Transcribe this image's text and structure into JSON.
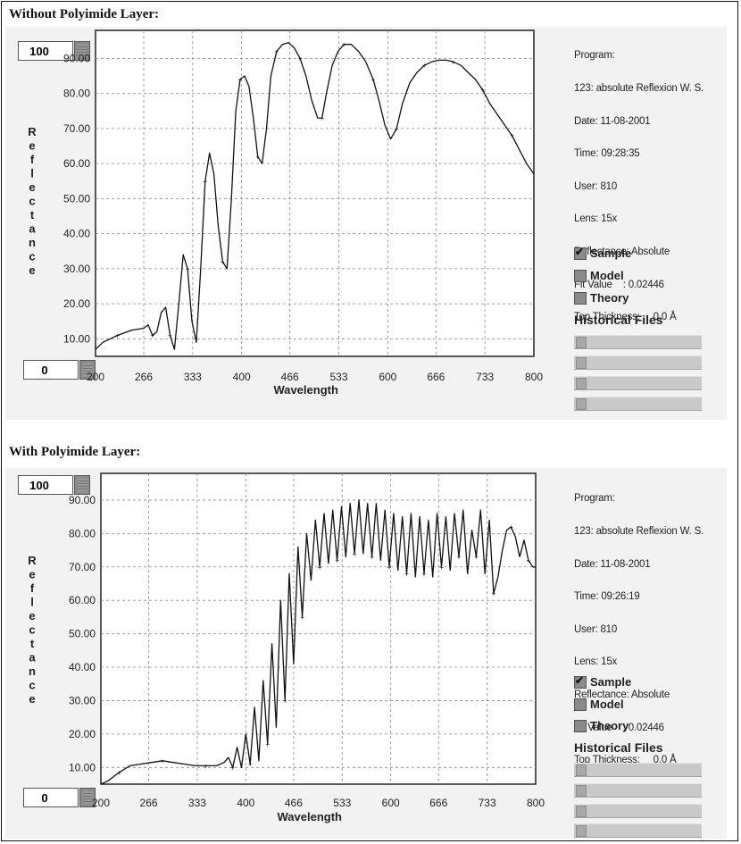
{
  "panels": [
    {
      "section_title": "Without Polyimide Layer:",
      "spin_max": "100",
      "spin_min": "0",
      "info_lines": [
        "Program:",
        "123: absolute Reflexion W. S.",
        "Date: 11-08-2001",
        "Time: 09:28:35",
        "User: 810",
        "Lens: 15x",
        "Reflectance: Absolute",
        "Fit Value    : 0.02446",
        "Top Thickness:     0.0 Å"
      ],
      "legend": [
        {
          "label": "Sample",
          "checked": true
        },
        {
          "label": "Model",
          "checked": false
        },
        {
          "label": "Theory",
          "checked": false
        }
      ],
      "historical_files_label": "Historical Files"
    },
    {
      "section_title": "With Polyimide Layer:",
      "spin_max": "100",
      "spin_min": "0",
      "info_lines": [
        "Program:",
        "123: absolute Reflexion W. S.",
        "Date: 11-08-2001",
        "Time: 09:26:19",
        "User: 810",
        "Lens: 15x",
        "Reflectance: Absolute",
        "Fit Value    : 0.02446",
        "Top Thickness:     0.0 Å"
      ],
      "legend": [
        {
          "label": "Sample",
          "checked": true
        },
        {
          "label": "Model",
          "checked": false
        },
        {
          "label": "Theory",
          "checked": false
        }
      ],
      "historical_files_label": "Historical Files"
    }
  ],
  "chart_data": [
    {
      "type": "line",
      "title": "Without Polyimide Layer:",
      "xlabel": "Wavelength",
      "ylabel": "Reflectance",
      "xlim": [
        200,
        800
      ],
      "ylim": [
        5,
        98
      ],
      "xticks": [
        200,
        266,
        333,
        400,
        466,
        533,
        600,
        666,
        733,
        800
      ],
      "xtick_labels": [
        "200",
        "266",
        "333",
        "400",
        "466",
        "533",
        "600",
        "666",
        "733",
        "800"
      ],
      "yticks": [
        10,
        20,
        30,
        40,
        50,
        60,
        70,
        80,
        90
      ],
      "ytick_labels": [
        "10.00",
        "20.00",
        "30.00",
        "40.00",
        "50.00",
        "60.00",
        "70.00",
        "80.00",
        "90.00"
      ],
      "grid": true,
      "series": [
        {
          "name": "Sample",
          "x": [
            200,
            210,
            230,
            250,
            266,
            272,
            278,
            284,
            290,
            296,
            302,
            308,
            314,
            320,
            326,
            332,
            338,
            344,
            350,
            356,
            362,
            368,
            374,
            380,
            386,
            392,
            398,
            404,
            410,
            416,
            422,
            428,
            434,
            440,
            448,
            456,
            464,
            472,
            480,
            488,
            496,
            504,
            510,
            516,
            524,
            532,
            540,
            550,
            560,
            570,
            580,
            588,
            596,
            604,
            612,
            620,
            630,
            640,
            650,
            660,
            670,
            680,
            690,
            700,
            710,
            720,
            730,
            740,
            750,
            760,
            770,
            780,
            790,
            800
          ],
          "y": [
            7,
            9,
            11,
            12.5,
            13,
            14,
            11,
            12,
            17.5,
            19,
            11,
            7,
            20,
            34,
            30,
            15,
            9,
            30,
            55,
            63,
            57,
            42,
            32,
            30,
            50,
            75,
            84,
            85,
            82,
            73,
            62,
            60,
            70,
            85,
            92,
            94,
            94.5,
            93,
            90,
            85,
            78,
            73,
            73,
            80,
            88,
            92,
            94,
            94,
            92,
            89,
            84,
            78,
            71,
            67,
            70,
            77,
            83,
            86,
            88,
            89,
            89.5,
            89.5,
            89,
            88,
            86,
            84,
            81,
            77,
            74,
            71,
            68,
            64,
            60,
            57
          ]
        }
      ]
    },
    {
      "type": "line",
      "title": "With Polyimide Layer:",
      "xlabel": "Wavelength",
      "ylabel": "Reflectance",
      "xlim": [
        200,
        800
      ],
      "ylim": [
        5,
        98
      ],
      "xticks": [
        200,
        266,
        333,
        400,
        466,
        533,
        600,
        666,
        733,
        800
      ],
      "xtick_labels": [
        "200",
        "266",
        "333",
        "400",
        "466",
        "533",
        "600",
        "666",
        "733",
        "800"
      ],
      "yticks": [
        10,
        20,
        30,
        40,
        50,
        60,
        70,
        80,
        90
      ],
      "ytick_labels": [
        "10.00",
        "20.00",
        "30.00",
        "40.00",
        "50.00",
        "60.00",
        "70.00",
        "80.00",
        "90.00"
      ],
      "grid": true,
      "series": [
        {
          "name": "Sample",
          "x": [
            200,
            210,
            225,
            240,
            255,
            270,
            285,
            300,
            315,
            330,
            345,
            360,
            370,
            376,
            382,
            388,
            394,
            400,
            406,
            412,
            418,
            424,
            430,
            436,
            442,
            448,
            454,
            460,
            466,
            472,
            478,
            484,
            490,
            496,
            502,
            508,
            514,
            520,
            526,
            532,
            538,
            544,
            550,
            556,
            562,
            568,
            574,
            580,
            586,
            592,
            598,
            604,
            610,
            616,
            622,
            628,
            634,
            640,
            646,
            652,
            658,
            664,
            670,
            676,
            682,
            688,
            694,
            700,
            706,
            712,
            718,
            724,
            730,
            736,
            742,
            748,
            754,
            760,
            766,
            772,
            778,
            784,
            790,
            796,
            800
          ],
          "y": [
            5,
            6,
            8.5,
            10.5,
            11,
            11.5,
            12,
            11.5,
            11,
            10.5,
            10.5,
            10.5,
            11.5,
            13,
            10,
            16,
            10,
            20,
            11,
            28,
            12,
            36,
            17,
            47,
            22,
            60,
            30,
            68,
            41,
            76,
            55,
            80,
            66,
            84,
            70,
            86,
            71,
            87,
            72,
            88,
            73,
            89,
            74,
            90,
            74,
            89,
            73,
            89,
            72,
            87,
            70,
            86,
            69,
            85,
            68,
            86,
            67,
            85,
            68,
            84,
            67,
            86,
            70,
            85,
            69,
            86,
            73,
            87,
            68,
            81,
            73,
            87,
            68,
            84,
            62,
            67,
            75,
            81,
            82,
            79,
            73,
            78,
            72,
            70,
            70
          ]
        }
      ]
    }
  ]
}
